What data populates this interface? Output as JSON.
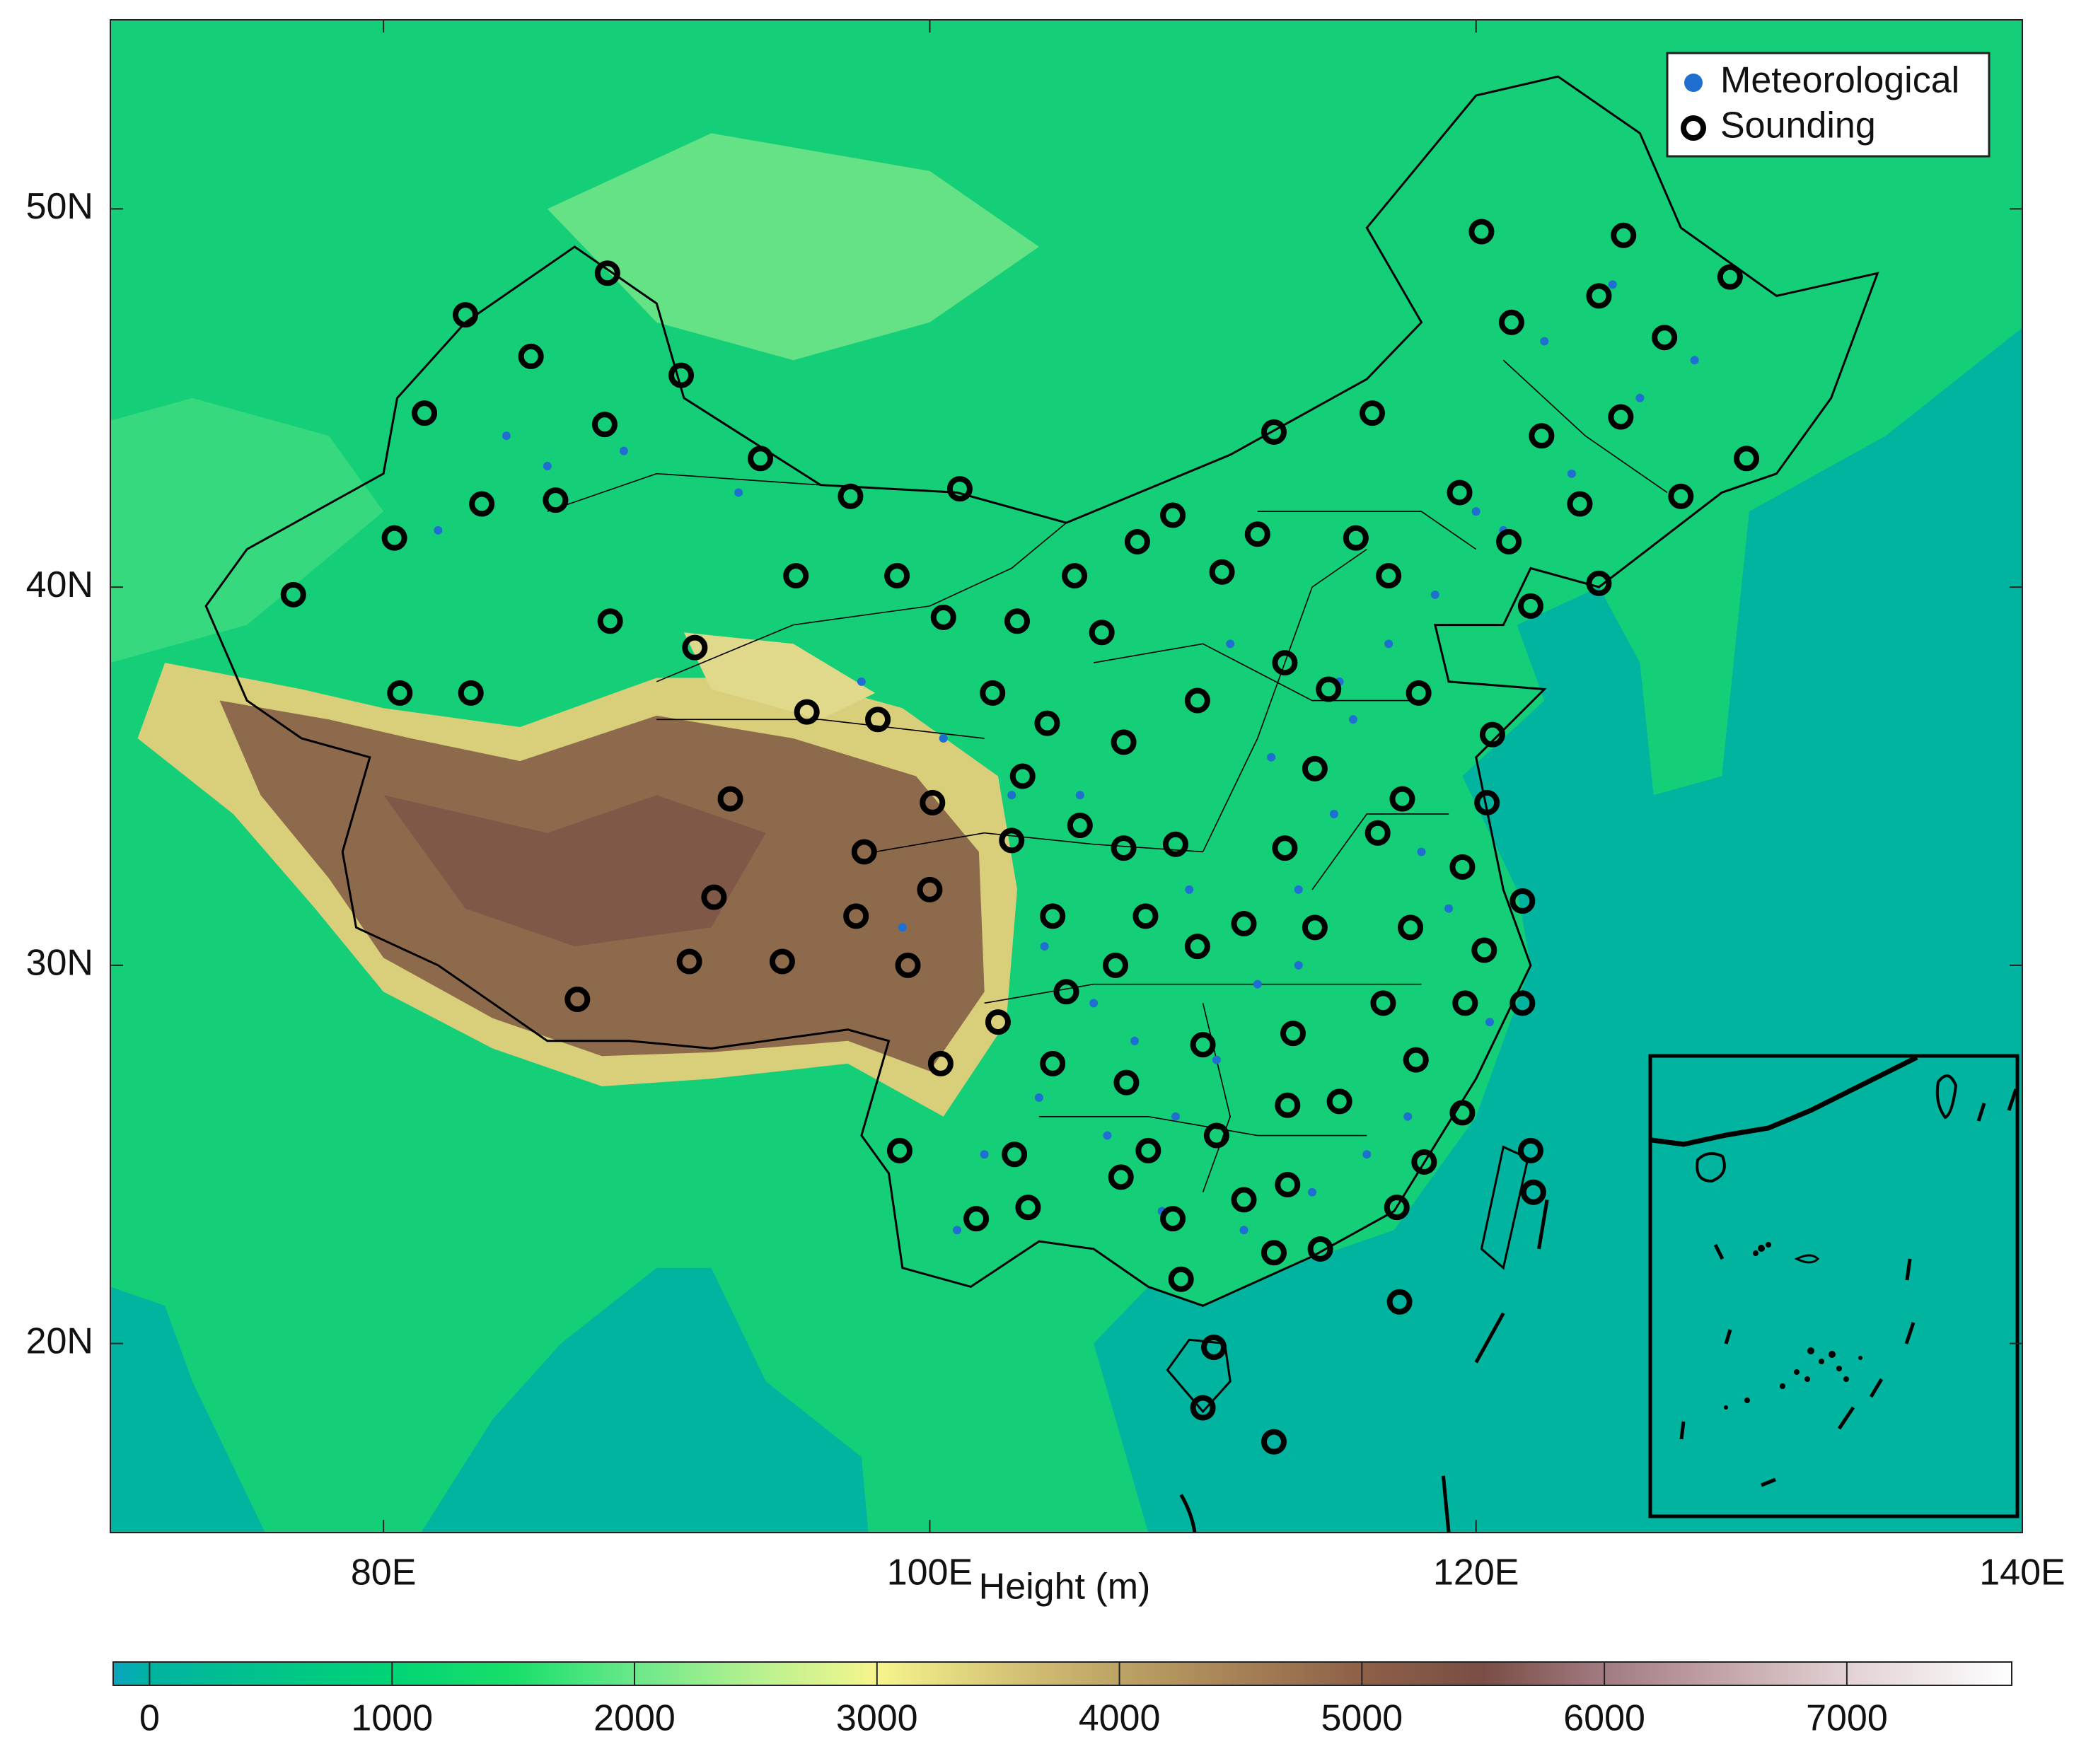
{
  "chart_data": {
    "type": "map",
    "xlim": [
      70,
      140
    ],
    "ylim": [
      15,
      55
    ],
    "xticks": [
      {
        "value": 80,
        "label": "80E"
      },
      {
        "value": 100,
        "label": "100E"
      },
      {
        "value": 120,
        "label": "120E"
      },
      {
        "value": 140,
        "label": "140E"
      }
    ],
    "yticks": [
      {
        "value": 20,
        "label": "20N"
      },
      {
        "value": 30,
        "label": "30N"
      },
      {
        "value": 40,
        "label": "40N"
      },
      {
        "value": 50,
        "label": "50N"
      }
    ],
    "legend": "upper right",
    "series": [
      {
        "name": "Meteorological",
        "color": "#1f6fd0",
        "x": [
          84.5,
          86.0,
          88.8,
          82.0,
          93.0,
          97.5,
          100.5,
          103.0,
          104.2,
          106.0,
          107.5,
          109.0,
          110.5,
          112.0,
          113.5,
          114.8,
          115.5,
          116.8,
          118.0,
          119.0,
          120.5,
          117.5,
          114.0,
          111.5,
          108.5,
          106.5,
          104.0,
          102.0,
          101.0,
          99.0,
          112.5,
          115.0,
          118.5,
          121.0,
          123.5,
          126.0,
          128.0,
          125.0,
          122.5,
          120.0,
          111.0,
          105.5,
          109.5,
          113.5,
          116.0
        ],
        "y": [
          44.0,
          43.2,
          43.6,
          41.5,
          42.5,
          37.5,
          36.0,
          34.5,
          30.5,
          29.0,
          28.0,
          26.0,
          27.5,
          29.5,
          32.0,
          34.0,
          36.5,
          38.5,
          33.0,
          31.5,
          28.5,
          26.0,
          24.0,
          23.0,
          23.5,
          25.5,
          26.5,
          25.0,
          23.0,
          31.0,
          35.5,
          37.5,
          39.8,
          41.5,
          43.0,
          45.0,
          46.0,
          48.0,
          46.5,
          42.0,
          38.5,
          34.5,
          32.0,
          30.0,
          25.0
        ]
      },
      {
        "name": "Sounding",
        "color": "#000000",
        "x": [
          83.0,
          88.2,
          85.4,
          90.9,
          81.5,
          88.1,
          93.8,
          83.6,
          86.3,
          80.4,
          76.7,
          88.3,
          80.6,
          83.2,
          91.4,
          95.5,
          98.1,
          95.1,
          97.1,
          101.1,
          98.8,
          100.5,
          103.2,
          102.3,
          104.3,
          103.4,
          100.1,
          92.7,
          97.6,
          103.0,
          100.0,
          92.1,
          97.3,
          91.2,
          94.6,
          99.2,
          87.1,
          102.5,
          100.4,
          98.9,
          103.1,
          101.7,
          103.6,
          105.3,
          106.3,
          107.1,
          105.5,
          107.1,
          104.5,
          107.9,
          105.0,
          106.8,
          104.5,
          107.2,
          108.0,
          107.0,
          108.9,
          107.6,
          112.6,
          112.0,
          110.7,
          113.0,
          109.8,
          109.0,
          109.8,
          110.0,
          110.5,
          108.9,
          109.2,
          110.4,
          110.0,
          112.6,
          116.2,
          115.6,
          116.8,
          114.6,
          114.1,
          113.0,
          111.5,
          114.1,
          113.3,
          113.1,
          115.0,
          111.5,
          113.1,
          112.6,
          114.3,
          117.2,
          117.1,
          118.1,
          117.8,
          116.6,
          116.4,
          117.6,
          117.3,
          117.9,
          120.2,
          121.3,
          119.4,
          121.2,
          122.0,
          120.6,
          120.4,
          119.5,
          121.7,
          120.3,
          119.6,
          121.7,
          119.5,
          122.0,
          122.1,
          125.4,
          124.5,
          126.9,
          125.3,
          122.4,
          123.8,
          124.5,
          127.5,
          129.9,
          129.3
        ],
        "y": [
          47.2,
          48.3,
          46.1,
          45.6,
          44.6,
          44.3,
          43.4,
          42.2,
          42.3,
          41.3,
          39.8,
          39.1,
          37.2,
          37.2,
          38.4,
          36.7,
          36.5,
          40.3,
          42.4,
          42.6,
          40.3,
          39.2,
          39.1,
          37.2,
          36.4,
          35.0,
          34.3,
          34.4,
          33.0,
          33.3,
          32.0,
          31.8,
          31.3,
          30.1,
          30.1,
          30.0,
          29.1,
          28.5,
          27.4,
          25.1,
          25.0,
          23.3,
          23.6,
          40.3,
          38.8,
          35.9,
          33.7,
          33.1,
          31.3,
          31.3,
          29.3,
          30.0,
          27.4,
          26.9,
          25.1,
          24.4,
          41.9,
          41.2,
          44.1,
          41.4,
          40.4,
          38.0,
          37.0,
          33.2,
          30.5,
          27.9,
          25.5,
          23.3,
          21.7,
          19.9,
          18.3,
          17.4,
          44.6,
          41.3,
          40.3,
          37.3,
          35.2,
          33.1,
          31.1,
          31.0,
          28.2,
          26.3,
          26.4,
          23.8,
          24.2,
          22.4,
          22.5,
          21.1,
          23.6,
          24.8,
          27.5,
          29.0,
          33.5,
          31.0,
          34.4,
          37.2,
          49.4,
          47.0,
          42.5,
          41.2,
          39.5,
          36.1,
          34.3,
          32.6,
          31.7,
          30.4,
          29.0,
          29.0,
          26.1,
          25.1,
          24.0,
          49.3,
          47.7,
          46.6,
          44.5,
          44.0,
          42.2,
          40.1,
          42.4,
          43.4,
          48.2
        ]
      }
    ],
    "colorbar": {
      "label": "Height (m)",
      "lim": [
        -150,
        7680
      ],
      "ticks": [
        0,
        1000,
        2000,
        3000,
        4000,
        5000,
        6000,
        7000
      ],
      "colormap": [
        [
          -150,
          "#0aa5c0"
        ],
        [
          0,
          "#00b3a1"
        ],
        [
          500,
          "#00c48a"
        ],
        [
          1000,
          "#00d474"
        ],
        [
          1500,
          "#19df6a"
        ],
        [
          2000,
          "#6ae88a"
        ],
        [
          2500,
          "#b6f190"
        ],
        [
          3000,
          "#f6f58c"
        ],
        [
          3500,
          "#d8c878"
        ],
        [
          4000,
          "#bca365"
        ],
        [
          4500,
          "#a68055"
        ],
        [
          5000,
          "#8e6048"
        ],
        [
          5500,
          "#7a4d45"
        ],
        [
          6000,
          "#a27b82"
        ],
        [
          6500,
          "#c4a6aa"
        ],
        [
          7000,
          "#e2d1d3"
        ],
        [
          7680,
          "#ffffff"
        ]
      ]
    }
  }
}
